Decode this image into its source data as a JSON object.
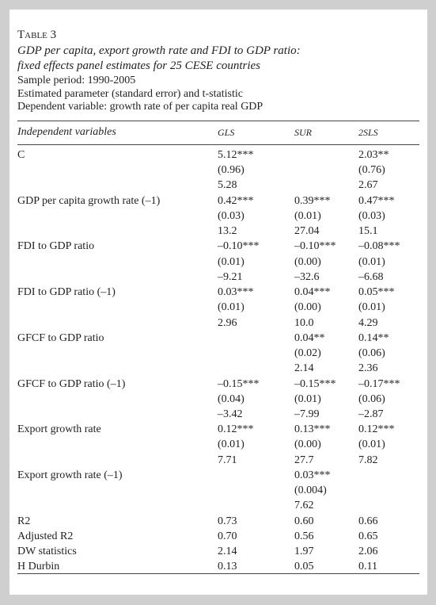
{
  "header": {
    "label": "Table 3",
    "title": [
      "GDP per capita, export growth rate and FDI to GDP ratio:",
      "fixed effects panel estimates for 25 CESE countries"
    ],
    "notes": [
      "Sample period: 1990-2005",
      "Estimated parameter (standard error) and t-statistic",
      "Dependent variable: growth rate of per capita real GDP"
    ]
  },
  "table": {
    "columns": [
      "Independent variables",
      "GLS",
      "SUR",
      "2SLS"
    ],
    "rows": [
      {
        "label": "C",
        "cells": [
          [
            "5.12***",
            "(0.96)",
            "5.28"
          ],
          null,
          [
            "2.03**",
            "(0.76)",
            "2.67"
          ]
        ]
      },
      {
        "label": "GDP per capita growth rate (–1)",
        "cells": [
          [
            "0.42***",
            "(0.03)",
            "13.2"
          ],
          [
            "0.39***",
            "(0.01)",
            "27.04"
          ],
          [
            "0.47***",
            "(0.03)",
            "15.1"
          ]
        ]
      },
      {
        "label": "FDI to GDP ratio",
        "cells": [
          [
            "–0.10***",
            "(0.01)",
            "–9.21"
          ],
          [
            "–0.10***",
            "(0.00)",
            "–32.6"
          ],
          [
            "–0.08***",
            "(0.01)",
            "–6.68"
          ]
        ]
      },
      {
        "label": "FDI to GDP ratio (–1)",
        "cells": [
          [
            "0.03***",
            "(0.01)",
            "2.96"
          ],
          [
            "0.04***",
            "(0.00)",
            "10.0"
          ],
          [
            "0.05***",
            "(0.01)",
            "4.29"
          ]
        ]
      },
      {
        "label": "GFCF to GDP ratio",
        "cells": [
          null,
          [
            "0.04**",
            "(0.02)",
            "2.14"
          ],
          [
            "0.14**",
            "(0.06)",
            "2.36"
          ]
        ]
      },
      {
        "label": "GFCF to GDP ratio (–1)",
        "cells": [
          [
            "–0.15***",
            "(0.04)",
            "–3.42"
          ],
          [
            "–0.15***",
            "(0.01)",
            "–7.99"
          ],
          [
            "–0.17***",
            "(0.06)",
            "–2.87"
          ]
        ]
      },
      {
        "label": "Export growth rate",
        "cells": [
          [
            "0.12***",
            "(0.01)",
            "7.71"
          ],
          [
            "0.13***",
            "(0.00)",
            "27.7"
          ],
          [
            "0.12***",
            "(0.01)",
            "7.82"
          ]
        ]
      },
      {
        "label": "Export growth rate (–1)",
        "cells": [
          null,
          [
            "0.03***",
            "(0.004)",
            "7.62"
          ],
          null
        ]
      }
    ],
    "stats": [
      {
        "label": "R2",
        "cells": [
          "0.73",
          "0.60",
          "0.66"
        ]
      },
      {
        "label": "Adjusted R2",
        "cells": [
          "0.70",
          "0.56",
          "0.65"
        ]
      },
      {
        "label": "DW statistics",
        "cells": [
          "2.14",
          "1.97",
          "2.06"
        ]
      },
      {
        "label": "H Durbin",
        "cells": [
          "0.13",
          "0.05",
          "0.11"
        ]
      }
    ]
  }
}
